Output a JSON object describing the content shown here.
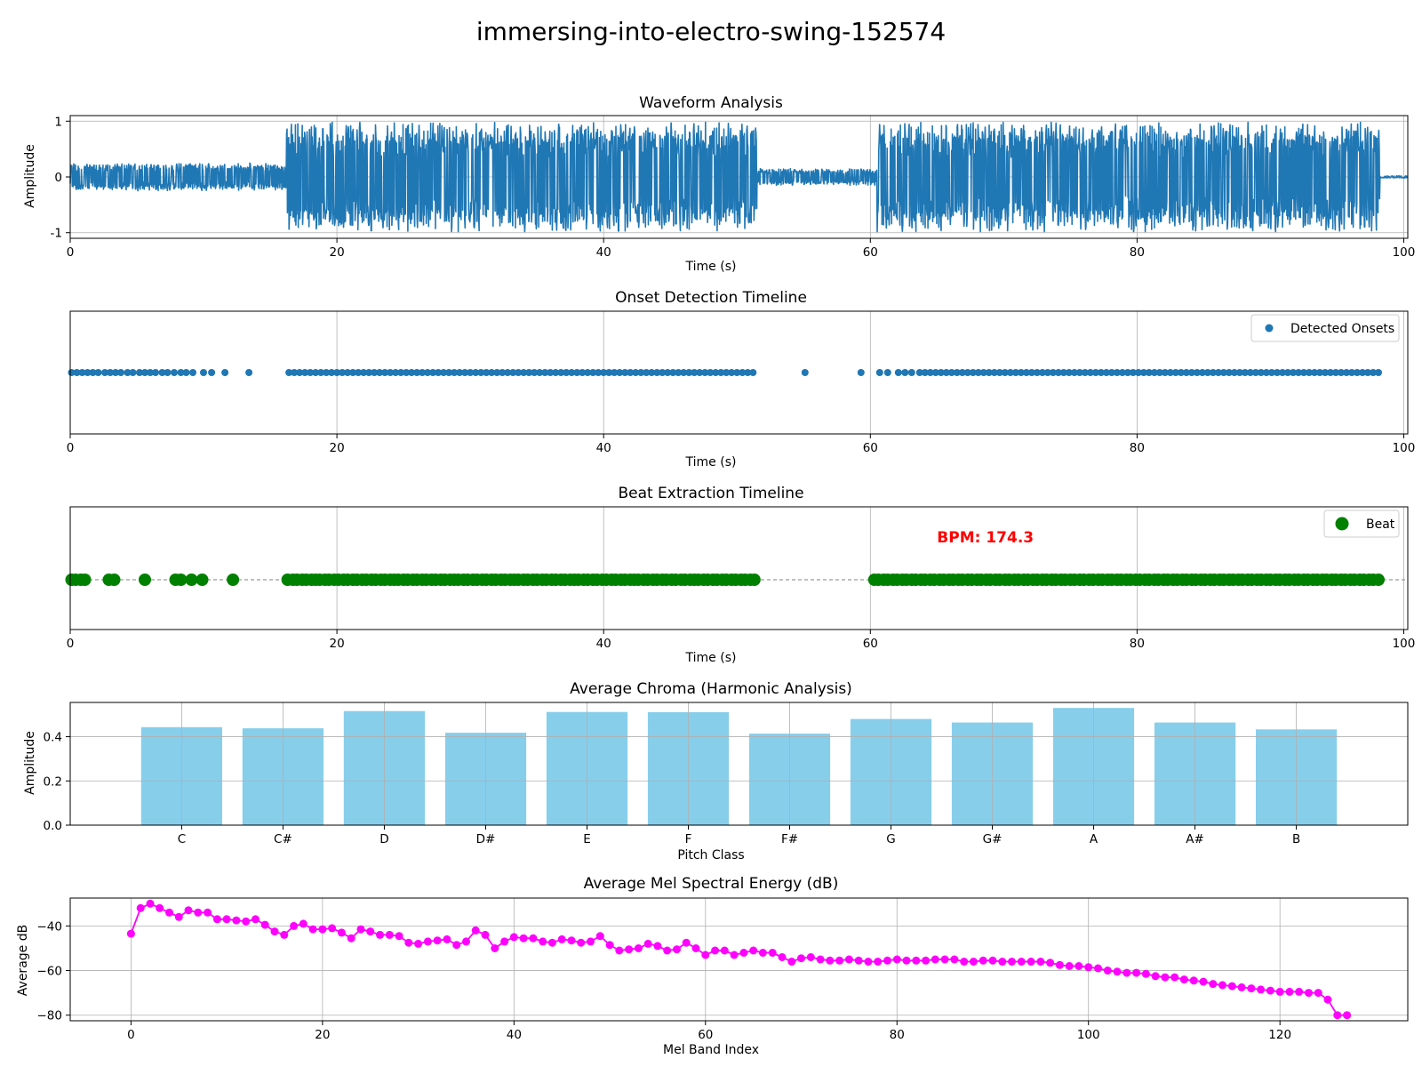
{
  "figure_title": "immersing-into-electro-swing-152574",
  "chart_data": [
    {
      "type": "line",
      "title": "Waveform Analysis",
      "xlabel": "Time (s)",
      "ylabel": "Amplitude",
      "xlim": [
        0,
        100.3
      ],
      "ylim": [
        -1.1,
        1.1
      ],
      "xticks": [
        0,
        20,
        40,
        60,
        80,
        100
      ],
      "yticks": [
        -1,
        0,
        1
      ],
      "grid": true,
      "color": "#1f77b4",
      "envelope": [
        {
          "t_start": 0,
          "t_end": 16.2,
          "amplitude": 0.25,
          "description": "quiet intro"
        },
        {
          "t_start": 16.2,
          "t_end": 51.5,
          "amplitude": 1.0,
          "description": "full"
        },
        {
          "t_start": 51.5,
          "t_end": 60.5,
          "amplitude": 0.15,
          "description": "breakdown"
        },
        {
          "t_start": 60.5,
          "t_end": 98.2,
          "amplitude": 1.0,
          "description": "full"
        },
        {
          "t_start": 98.2,
          "t_end": 100.3,
          "amplitude": 0.02,
          "description": "tail"
        }
      ]
    },
    {
      "type": "scatter",
      "title": "Onset Detection Timeline",
      "xlabel": "Time (s)",
      "xlim": [
        0,
        100.3
      ],
      "xticks": [
        0,
        20,
        40,
        60,
        80,
        100
      ],
      "grid": true,
      "legend": {
        "position": "top-right",
        "entries": [
          "Detected Onsets"
        ]
      },
      "color": "#1f77b4",
      "onsets": [
        0.1,
        0.5,
        0.9,
        1.3,
        1.7,
        2.1,
        2.6,
        3.0,
        3.4,
        3.8,
        4.3,
        4.7,
        5.2,
        5.6,
        6.0,
        6.4,
        6.9,
        7.3,
        7.8,
        8.3,
        8.7,
        9.2,
        10.0,
        10.6,
        11.6,
        13.4,
        16.4,
        16.8,
        17.2,
        17.6,
        18.0,
        18.4,
        18.8,
        19.2,
        19.6,
        20.0,
        20.4,
        20.8,
        21.2,
        21.6,
        22.0,
        22.4,
        22.8,
        23.2,
        23.6,
        24.0,
        24.4,
        24.8,
        25.2,
        25.6,
        26.0,
        26.4,
        26.8,
        27.2,
        27.6,
        28.0,
        28.4,
        28.8,
        29.2,
        29.6,
        30.0,
        30.4,
        30.8,
        31.2,
        31.6,
        32.0,
        32.4,
        32.8,
        33.2,
        33.6,
        34.0,
        34.4,
        34.8,
        35.2,
        35.6,
        36.0,
        36.4,
        36.8,
        37.2,
        37.6,
        38.0,
        38.4,
        38.8,
        39.2,
        39.6,
        40.0,
        40.4,
        40.8,
        41.2,
        41.6,
        42.0,
        42.4,
        42.8,
        43.2,
        43.6,
        44.0,
        44.4,
        44.8,
        45.2,
        45.6,
        46.0,
        46.4,
        46.8,
        47.2,
        47.6,
        48.0,
        48.4,
        48.8,
        49.2,
        49.6,
        50.0,
        50.4,
        50.8,
        51.2,
        55.1,
        59.3,
        60.7,
        61.3,
        62.1,
        62.6,
        63.1,
        63.7,
        64.1,
        64.5,
        64.9,
        65.3,
        65.7,
        66.1,
        66.5,
        66.9,
        67.3,
        67.7,
        68.1,
        68.5,
        68.9,
        69.3,
        69.7,
        70.1,
        70.5,
        70.9,
        71.3,
        71.7,
        72.1,
        72.5,
        72.9,
        73.3,
        73.7,
        74.1,
        74.5,
        74.9,
        75.3,
        75.7,
        76.1,
        76.5,
        76.9,
        77.3,
        77.7,
        78.1,
        78.5,
        78.9,
        79.3,
        79.7,
        80.1,
        80.5,
        80.9,
        81.3,
        81.7,
        82.1,
        82.5,
        82.9,
        83.3,
        83.7,
        84.1,
        84.5,
        84.9,
        85.3,
        85.7,
        86.1,
        86.5,
        86.9,
        87.3,
        87.7,
        88.1,
        88.5,
        88.9,
        89.3,
        89.7,
        90.1,
        90.5,
        90.9,
        91.3,
        91.7,
        92.1,
        92.5,
        92.9,
        93.3,
        93.7,
        94.1,
        94.5,
        94.9,
        95.3,
        95.7,
        96.1,
        96.5,
        96.9,
        97.3,
        97.7,
        98.1
      ]
    },
    {
      "type": "scatter",
      "title": "Beat Extraction Timeline",
      "xlabel": "Time (s)",
      "xlim": [
        0,
        100.3
      ],
      "xticks": [
        0,
        20,
        40,
        60,
        80,
        100
      ],
      "grid": true,
      "legend": {
        "position": "top-right",
        "entries": [
          "Beat"
        ]
      },
      "annotation": {
        "text": "BPM: 174.3",
        "x": 65,
        "color": "#ff0000"
      },
      "color": "#008000",
      "beats": [
        0.1,
        0.4,
        0.8,
        1.1,
        2.9,
        3.3,
        5.6,
        7.9,
        8.3,
        9.1,
        9.9,
        12.2,
        16.3,
        16.7,
        17.0,
        17.4,
        17.7,
        18.1,
        18.4,
        18.7,
        19.1,
        19.4,
        19.8,
        20.1,
        20.5,
        20.8,
        21.2,
        21.5,
        21.9,
        22.2,
        22.6,
        22.9,
        23.3,
        23.6,
        24.0,
        24.3,
        24.6,
        25.0,
        25.3,
        25.7,
        26.0,
        26.4,
        26.7,
        27.1,
        27.4,
        27.8,
        28.1,
        28.5,
        28.8,
        29.1,
        29.5,
        29.8,
        30.2,
        30.5,
        30.9,
        31.2,
        31.6,
        31.9,
        32.3,
        32.6,
        33.0,
        33.3,
        33.6,
        34.0,
        34.3,
        34.7,
        35.0,
        35.4,
        35.7,
        36.1,
        36.4,
        36.8,
        37.1,
        37.5,
        37.8,
        38.1,
        38.5,
        38.8,
        39.2,
        39.5,
        39.9,
        40.2,
        40.6,
        40.9,
        41.3,
        41.6,
        42.0,
        42.3,
        42.6,
        43.0,
        43.3,
        43.7,
        44.0,
        44.4,
        44.7,
        45.1,
        45.4,
        45.8,
        46.1,
        46.5,
        46.8,
        47.1,
        47.5,
        47.8,
        48.2,
        48.5,
        48.9,
        49.2,
        49.6,
        49.9,
        50.3,
        50.6,
        51.0,
        51.3,
        60.3,
        60.6,
        61.0,
        61.3,
        61.7,
        62.0,
        62.4,
        62.7,
        63.1,
        63.4,
        63.8,
        64.1,
        64.5,
        64.8,
        65.2,
        65.5,
        65.9,
        66.2,
        66.6,
        66.9,
        67.3,
        67.6,
        68.0,
        68.3,
        68.7,
        69.0,
        69.4,
        69.7,
        70.1,
        70.4,
        70.8,
        71.1,
        71.5,
        71.8,
        72.2,
        72.5,
        72.9,
        73.2,
        73.6,
        73.9,
        74.3,
        74.6,
        75.0,
        75.3,
        75.7,
        76.0,
        76.4,
        76.7,
        77.1,
        77.4,
        77.8,
        78.1,
        78.5,
        78.8,
        79.2,
        79.5,
        79.9,
        80.2,
        80.6,
        80.9,
        81.3,
        81.6,
        82.0,
        82.3,
        82.7,
        83.0,
        83.4,
        83.7,
        84.1,
        84.4,
        84.8,
        85.1,
        85.5,
        85.8,
        86.2,
        86.5,
        86.9,
        87.2,
        87.6,
        87.9,
        88.3,
        88.6,
        89.0,
        89.3,
        89.7,
        90.0,
        90.4,
        90.7,
        91.1,
        91.4,
        91.8,
        92.1,
        92.5,
        92.8,
        93.2,
        93.5,
        93.9,
        94.2,
        94.6,
        94.9,
        95.3,
        95.6,
        96.0,
        96.3,
        96.7,
        97.0,
        97.4,
        97.7,
        98.1
      ]
    },
    {
      "type": "bar",
      "title": "Average Chroma (Harmonic Analysis)",
      "xlabel": "Pitch Class",
      "ylabel": "Amplitude",
      "categories": [
        "C",
        "C#",
        "D",
        "D#",
        "E",
        "F",
        "F#",
        "G",
        "G#",
        "A",
        "A#",
        "B"
      ],
      "values": [
        0.443,
        0.438,
        0.516,
        0.418,
        0.512,
        0.511,
        0.414,
        0.48,
        0.464,
        0.53,
        0.464,
        0.433
      ],
      "ylim": [
        0,
        0.555
      ],
      "yticks": [
        0.0,
        0.2,
        0.4
      ],
      "ytick_labels": [
        "0.0",
        "0.2",
        "0.4"
      ],
      "grid": true,
      "color": "#87ceeb"
    },
    {
      "type": "line",
      "title": "Average Mel Spectral Energy (dB)",
      "xlabel": "Mel Band Index",
      "ylabel": "Average dB",
      "xlim": [
        -6.35,
        133.35
      ],
      "ylim": [
        -82.5,
        -27.5
      ],
      "xticks": [
        0,
        20,
        40,
        60,
        80,
        100,
        120
      ],
      "yticks": [
        -40,
        -60,
        -80
      ],
      "ytick_labels": [
        "−40",
        "−60",
        "−80"
      ],
      "grid": true,
      "color": "#ff00ff",
      "x_start": 0,
      "values": [
        -43.5,
        -32.0,
        -30.0,
        -32.0,
        -34.0,
        -36.0,
        -33.0,
        -34.0,
        -34.0,
        -37.0,
        -37.0,
        -37.5,
        -38.0,
        -37.0,
        -39.5,
        -42.5,
        -44.0,
        -40.0,
        -39.0,
        -41.5,
        -41.5,
        -41.0,
        -43.0,
        -45.5,
        -41.5,
        -42.5,
        -44.0,
        -44.0,
        -44.5,
        -47.5,
        -48.0,
        -47.0,
        -46.5,
        -46.0,
        -48.5,
        -47.0,
        -42.0,
        -44.0,
        -50.0,
        -47.0,
        -45.0,
        -45.5,
        -45.5,
        -47.0,
        -47.5,
        -46.0,
        -46.5,
        -47.5,
        -47.0,
        -44.5,
        -48.5,
        -51.0,
        -50.5,
        -50.0,
        -48.0,
        -49.0,
        -51.0,
        -50.5,
        -47.5,
        -50.0,
        -53.0,
        -51.0,
        -51.0,
        -53.0,
        -52.0,
        -51.0,
        -52.0,
        -52.0,
        -54.0,
        -56.0,
        -54.5,
        -54.0,
        -55.0,
        -55.5,
        -55.5,
        -55.0,
        -55.5,
        -56.0,
        -56.0,
        -55.5,
        -55.0,
        -55.5,
        -55.5,
        -55.5,
        -55.0,
        -55.0,
        -55.0,
        -56.0,
        -56.0,
        -55.5,
        -55.5,
        -56.0,
        -56.0,
        -56.0,
        -56.0,
        -56.0,
        -56.5,
        -57.5,
        -58.0,
        -58.0,
        -58.5,
        -59.0,
        -60.0,
        -60.5,
        -61.0,
        -61.0,
        -61.5,
        -62.5,
        -63.0,
        -63.0,
        -64.0,
        -64.5,
        -65.0,
        -66.0,
        -66.5,
        -67.0,
        -67.5,
        -68.0,
        -68.5,
        -69.0,
        -69.5,
        -69.5,
        -69.5,
        -70.0,
        -70.0,
        -73.0,
        -80.0,
        -80.0
      ]
    }
  ]
}
